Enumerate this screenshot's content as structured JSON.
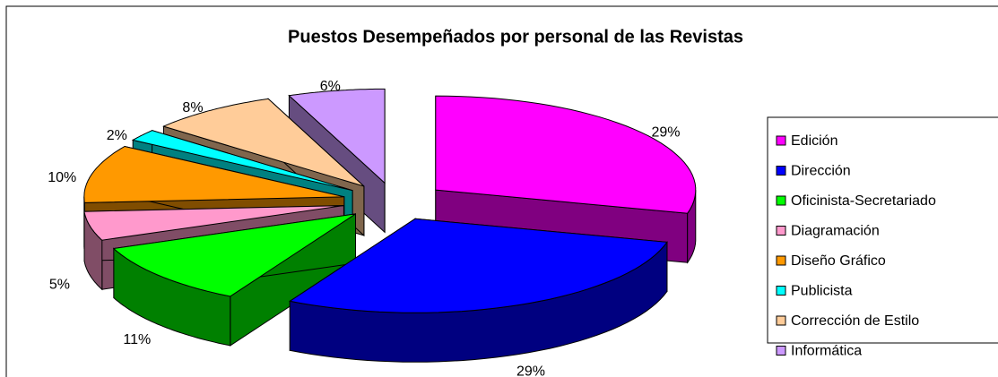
{
  "chart_data": {
    "type": "pie",
    "title": "Puestos Desempeñados por personal de las Revistas",
    "categories": [
      "Edición",
      "Dirección",
      "Oficinista-Secretariado",
      "Diagramación",
      "Diseño Gráfico",
      "Publicista",
      "Corrección de Estilo",
      "Informática"
    ],
    "values": [
      29,
      29,
      11,
      5,
      10,
      2,
      8,
      6
    ],
    "value_labels": [
      "29%",
      "29%",
      "11%",
      "5%",
      "10%",
      "2%",
      "8%",
      "6%"
    ],
    "colors": [
      "#ff00ff",
      "#0000ff",
      "#00ff00",
      "#ff99cc",
      "#ff9900",
      "#00ffff",
      "#ffcc99",
      "#cc99ff"
    ],
    "legend": "right"
  }
}
